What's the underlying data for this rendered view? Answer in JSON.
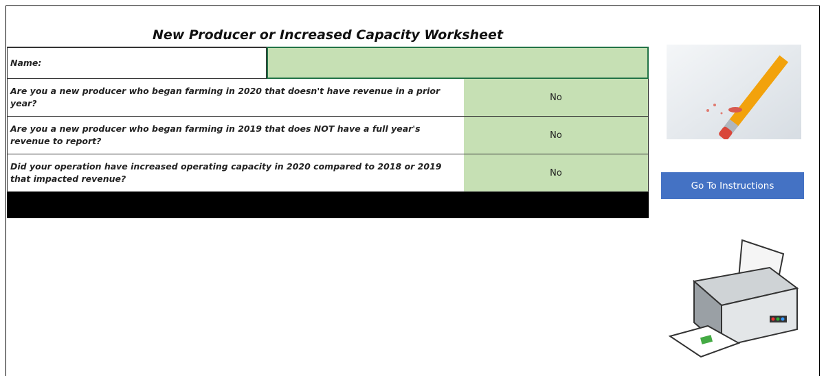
{
  "header": {
    "title": "New Producer or Increased Capacity Worksheet"
  },
  "form": {
    "name_label": "Name:",
    "rows": [
      {
        "question": "Are you a new producer who began farming in 2020 that doesn't have revenue in a prior year?",
        "answer": "No"
      },
      {
        "question": "Are you a new producer who began farming in 2019 that does NOT have a full year's revenue to report?",
        "answer": "No"
      },
      {
        "question": "Did your operation have increased operating capacity in 2020 compared to 2018 or 2019 that impacted revenue?",
        "answer": "No"
      }
    ]
  },
  "button": {
    "label": "Go To Instructions"
  }
}
